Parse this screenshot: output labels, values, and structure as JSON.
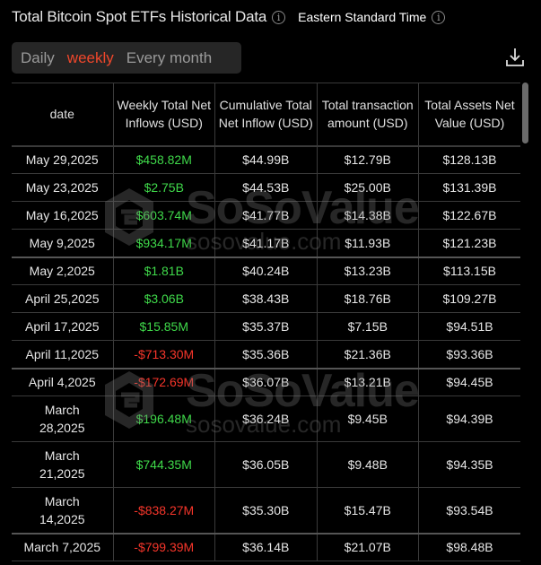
{
  "header": {
    "title": "Total Bitcoin Spot ETFs Historical Data",
    "timezone": "Eastern Standard Time",
    "info_icon": "info-circle-icon"
  },
  "tabs": [
    {
      "label": "Daily",
      "active": false
    },
    {
      "label": "weekly",
      "active": true
    },
    {
      "label": "Every month",
      "active": false
    }
  ],
  "toolbar": {
    "download_icon": "download-icon"
  },
  "colors": {
    "accent": "#f0472b",
    "positive": "#3fd94a",
    "negative": "#f5352a",
    "background": "#000000"
  },
  "watermark": {
    "brand": "SoSoValue",
    "url": "sosovalue.com"
  },
  "table": {
    "columns": [
      "date",
      "Weekly Total Net Inflows (USD)",
      "Cumulative Total Net Inflow (USD)",
      "Total transaction amount (USD)",
      "Total Assets Net Value (USD)"
    ],
    "rows": [
      [
        "May 29,2025",
        "$458.82M",
        "$44.99B",
        "$12.79B",
        "$128.13B"
      ],
      [
        "May 23,2025",
        "$2.75B",
        "$44.53B",
        "$25.00B",
        "$131.39B"
      ],
      [
        "May 16,2025",
        "$603.74M",
        "$41.77B",
        "$14.38B",
        "$122.67B"
      ],
      [
        "May 9,2025",
        "$934.17M",
        "$41.17B",
        "$11.93B",
        "$121.23B"
      ],
      [
        "May 2,2025",
        "$1.81B",
        "$40.24B",
        "$13.23B",
        "$113.15B"
      ],
      [
        "April 25,2025",
        "$3.06B",
        "$38.43B",
        "$18.76B",
        "$109.27B"
      ],
      [
        "April 17,2025",
        "$15.85M",
        "$35.37B",
        "$7.15B",
        "$94.51B"
      ],
      [
        "April 11,2025",
        "-$713.30M",
        "$35.36B",
        "$21.36B",
        "$93.36B"
      ],
      [
        "April 4,2025",
        "-$172.69M",
        "$36.07B",
        "$13.21B",
        "$94.45B"
      ],
      [
        "March 28,2025",
        "$196.48M",
        "$36.24B",
        "$9.45B",
        "$94.39B"
      ],
      [
        "March 21,2025",
        "$744.35M",
        "$36.05B",
        "$9.48B",
        "$94.35B"
      ],
      [
        "March 14,2025",
        "-$838.27M",
        "$35.30B",
        "$15.47B",
        "$93.54B"
      ],
      [
        "March 7,2025",
        "-$799.39M",
        "$36.14B",
        "$21.07B",
        "$98.48B"
      ]
    ]
  }
}
